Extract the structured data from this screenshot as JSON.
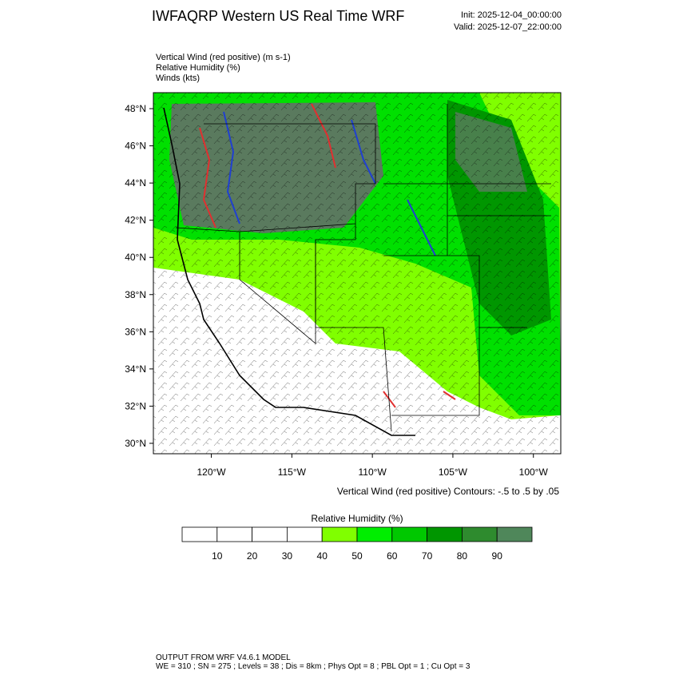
{
  "header": {
    "title": "IWFAQRP Western US Real Time WRF",
    "init": "Init: 2025-12-04_00:00:00",
    "valid": "Valid: 2025-12-07_22:00:00"
  },
  "fields": [
    "Vertical Wind (red positive)   (m s-1)",
    "Relative Humidity   (%)",
    "Winds   (kts)"
  ],
  "map": {
    "latlim": [
      29.44,
      48.86
    ],
    "lonlim": [
      -123.6,
      -98.3
    ],
    "lat_ticks": [
      {
        "value": 48,
        "label": "48°N"
      },
      {
        "value": 46,
        "label": "46°N"
      },
      {
        "value": 44,
        "label": "44°N"
      },
      {
        "value": 42,
        "label": "42°N"
      },
      {
        "value": 40,
        "label": "40°N"
      },
      {
        "value": 38,
        "label": "38°N"
      },
      {
        "value": 36,
        "label": "36°N"
      },
      {
        "value": 34,
        "label": "34°N"
      },
      {
        "value": 32,
        "label": "32°N"
      },
      {
        "value": 30,
        "label": "30°N"
      }
    ],
    "lon_ticks": [
      {
        "value": -120,
        "label": "120°W"
      },
      {
        "value": -115,
        "label": "115°W"
      },
      {
        "value": -110,
        "label": "110°W"
      },
      {
        "value": -105,
        "label": "105°W"
      },
      {
        "value": -100,
        "label": "100°W"
      }
    ],
    "contour_note": "Vertical Wind (red positive) Contours: -.5 to .5 by .05"
  },
  "colorbar": {
    "title": "Relative Humidity  (%)",
    "levels": [
      10,
      20,
      30,
      40,
      50,
      60,
      70,
      80,
      90
    ],
    "colors": [
      "#ffffff",
      "#ffffff",
      "#ffffff",
      "#ffffff",
      "#80ff00",
      "#00ee00",
      "#00c800",
      "#009600",
      "#2e8b2e",
      "#4f875a"
    ]
  },
  "footer": {
    "line1": "OUTPUT FROM WRF V4.6.1 MODEL",
    "line2": "WE = 310 ; SN = 275 ; Levels = 38 ; Dis = 8km ; Phys Opt = 8 ; PBL Opt = 1 ; Cu Opt = 3"
  }
}
